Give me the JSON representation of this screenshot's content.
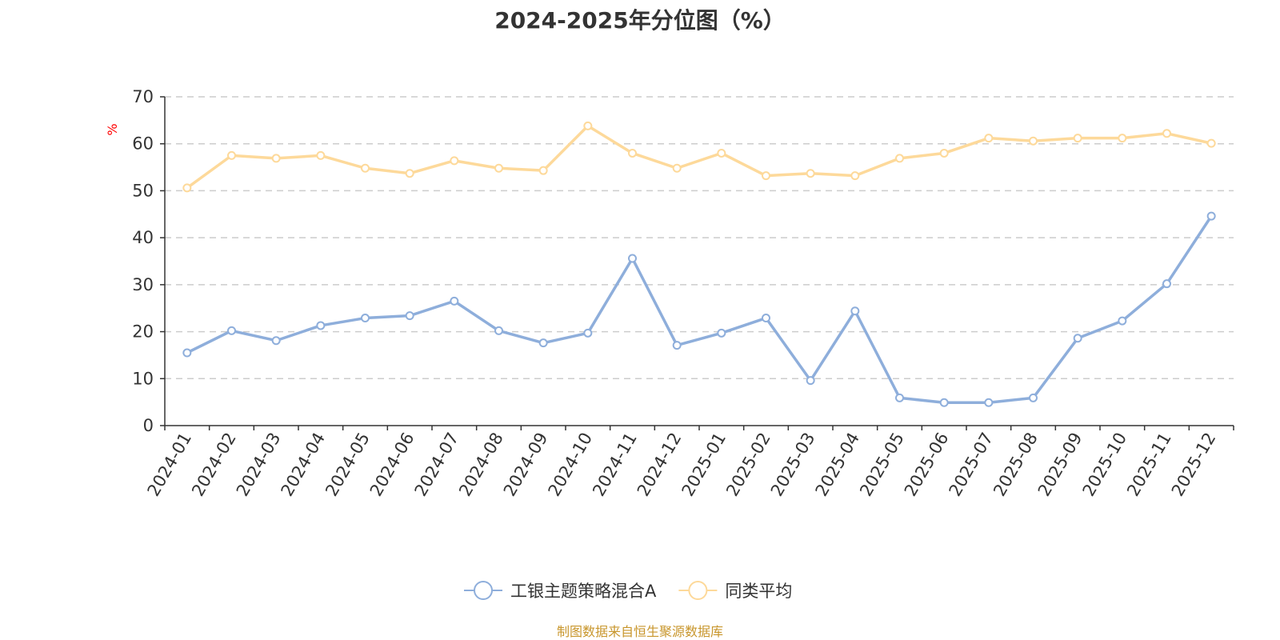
{
  "chart_data": {
    "type": "line",
    "title": "2024-2025年分位图（%）",
    "ylabel": "%",
    "xlabel": "",
    "ylim": [
      0,
      70
    ],
    "yticks": [
      0,
      10,
      20,
      30,
      40,
      50,
      60,
      70
    ],
    "grid": true,
    "legend_position": "bottom-center",
    "categories": [
      "2024-01",
      "2024-02",
      "2024-03",
      "2024-04",
      "2024-05",
      "2024-06",
      "2024-07",
      "2024-08",
      "2024-09",
      "2024-10",
      "2024-11",
      "2024-12",
      "2025-01",
      "2025-02",
      "2025-03",
      "2025-04",
      "2025-05",
      "2025-06",
      "2025-07",
      "2025-08",
      "2025-09",
      "2025-10",
      "2025-11",
      "2025-12"
    ],
    "series": [
      {
        "name": "工银主题策略混合A",
        "color": "#8eaedb",
        "values": [
          15.5,
          20.2,
          18.1,
          21.3,
          22.9,
          23.4,
          26.5,
          20.2,
          17.6,
          19.7,
          35.6,
          17.1,
          19.7,
          22.9,
          9.6,
          24.4,
          5.9,
          4.9,
          4.9,
          5.9,
          18.6,
          22.3,
          30.2,
          44.6
        ]
      },
      {
        "name": "同类平均",
        "color": "#fdd99a",
        "values": [
          50.6,
          57.5,
          56.9,
          57.5,
          54.8,
          53.7,
          56.4,
          54.8,
          54.3,
          63.8,
          58.0,
          54.8,
          58.0,
          53.2,
          53.7,
          53.2,
          56.9,
          58.0,
          61.2,
          60.6,
          61.2,
          61.2,
          62.2,
          60.1
        ]
      }
    ]
  },
  "footer": {
    "source": "制图数据来自恒生聚源数据库"
  }
}
